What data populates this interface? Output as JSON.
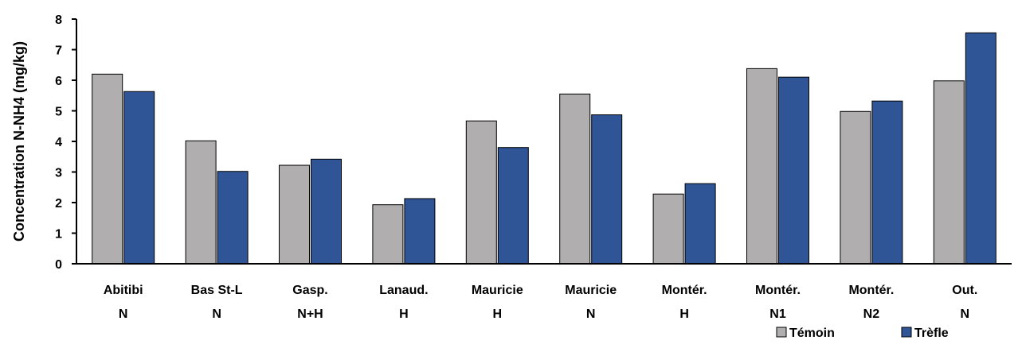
{
  "chart_data": {
    "type": "bar",
    "title": "",
    "xlabel": "",
    "ylabel": "Concentration N-NH4 (mg/kg)",
    "ylim": [
      0,
      8
    ],
    "yticks": [
      0,
      1,
      2,
      3,
      4,
      5,
      6,
      7,
      8
    ],
    "grid": false,
    "legend_position": "bottom-right",
    "categories": [
      [
        "Abitibi",
        "N"
      ],
      [
        "Bas St-L",
        "N"
      ],
      [
        "Gasp.",
        "N+H"
      ],
      [
        "Lanaud.",
        "H"
      ],
      [
        "Mauricie",
        "H"
      ],
      [
        "Mauricie",
        "N"
      ],
      [
        "Montér.",
        "H"
      ],
      [
        "Montér.",
        "N1"
      ],
      [
        "Montér.",
        "N2"
      ],
      [
        "Out.",
        "N"
      ]
    ],
    "series": [
      {
        "name": "Témoin",
        "color": "#b0aeae",
        "values": [
          6.2,
          4.02,
          3.22,
          1.93,
          4.67,
          5.55,
          2.28,
          6.38,
          4.98,
          5.98
        ]
      },
      {
        "name": "Trèfle",
        "color": "#2f5597",
        "values": [
          5.63,
          3.02,
          3.42,
          2.13,
          3.8,
          4.87,
          2.62,
          6.1,
          5.32,
          7.55
        ]
      }
    ]
  }
}
